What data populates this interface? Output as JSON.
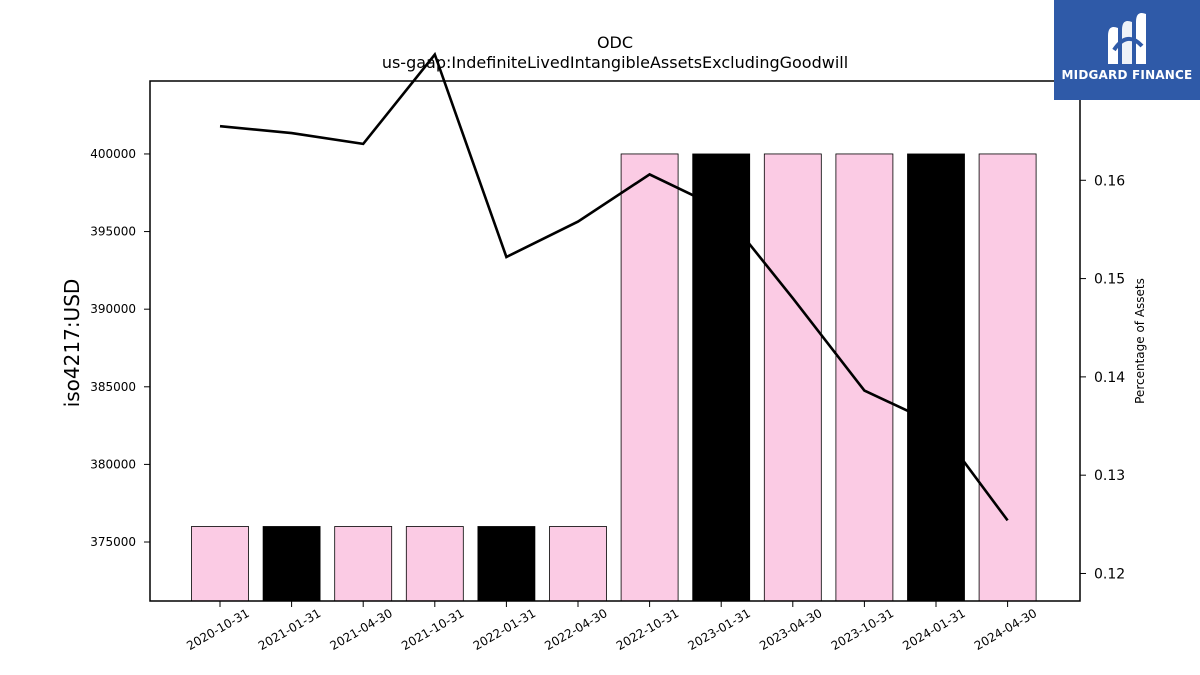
{
  "chart_data": {
    "type": "bar",
    "title": "ODC",
    "subtitle": "us-gaap:IndefiniteLivedIntangibleAssetsExcludingGoodwill",
    "ylabel": "iso4217:USD",
    "y2label": "Percentage of Assets",
    "categories": [
      "2020-10-31",
      "2021-01-31",
      "2021-04-30",
      "2021-10-31",
      "2022-01-31",
      "2022-04-30",
      "2022-10-31",
      "2023-01-31",
      "2023-04-30",
      "2023-10-31",
      "2024-01-31",
      "2024-04-30"
    ],
    "values": [
      376000,
      376000,
      376000,
      376000,
      376000,
      376000,
      400000,
      400000,
      400000,
      400000,
      400000,
      400000
    ],
    "bar_colors": [
      "#fbcbe4",
      "#000000",
      "#fbcbe4",
      "#fbcbe4",
      "#000000",
      "#fbcbe4",
      "#fbcbe4",
      "#000000",
      "#fbcbe4",
      "#fbcbe4",
      "#000000",
      "#fbcbe4"
    ],
    "line_values": [
      0.1655,
      0.1648,
      0.1637,
      0.1728,
      0.1522,
      0.1558,
      0.1606,
      0.1571,
      0.148,
      0.1386,
      0.1352,
      0.1254
    ],
    "line_color": "#000000",
    "ylim": [
      371200,
      404700
    ],
    "y2lim": [
      0.1172,
      0.1701
    ],
    "yticks": [
      375000,
      380000,
      385000,
      390000,
      395000,
      400000
    ],
    "y2ticks": [
      "0.12",
      "0.13",
      "0.14",
      "0.15",
      "0.16"
    ],
    "grid": false
  },
  "logo": {
    "text": "MIDGARD FINANCE"
  }
}
